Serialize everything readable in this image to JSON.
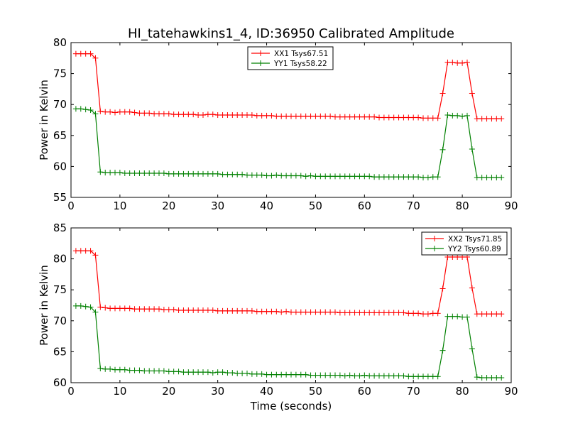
{
  "figure": {
    "title": "HI_tatehawkins1_4, ID:36950 Calibrated Amplitude",
    "xlabel": "Time (seconds)"
  },
  "chart_data": [
    {
      "type": "line",
      "title": "HI_tatehawkins1_4, ID:36950 Calibrated Amplitude",
      "xlabel": "",
      "ylabel": "Power in Kelvin",
      "xlim": [
        0,
        90
      ],
      "ylim": [
        55,
        80
      ],
      "xticks": [
        0,
        10,
        20,
        30,
        40,
        50,
        60,
        70,
        80,
        90
      ],
      "yticks": [
        55,
        60,
        65,
        70,
        75,
        80
      ],
      "grid": false,
      "legend_position": "top-center",
      "marker": "plus",
      "x": [
        1,
        2,
        3,
        4,
        5,
        6,
        7,
        8,
        9,
        10,
        11,
        12,
        13,
        14,
        15,
        16,
        17,
        18,
        19,
        20,
        21,
        22,
        23,
        24,
        25,
        26,
        27,
        28,
        29,
        30,
        31,
        32,
        33,
        34,
        35,
        36,
        37,
        38,
        39,
        40,
        41,
        42,
        43,
        44,
        45,
        46,
        47,
        48,
        49,
        50,
        51,
        52,
        53,
        54,
        55,
        56,
        57,
        58,
        59,
        60,
        61,
        62,
        63,
        64,
        65,
        66,
        67,
        68,
        69,
        70,
        71,
        72,
        73,
        74,
        75,
        76,
        77,
        78,
        79,
        80,
        81,
        82,
        83,
        84,
        85,
        86,
        87,
        88
      ],
      "series": [
        {
          "name": "XX1 Tsys67.51",
          "color": "#ff0000",
          "values": [
            78.2,
            78.2,
            78.2,
            78.2,
            77.5,
            68.9,
            68.8,
            68.8,
            68.7,
            68.8,
            68.8,
            68.8,
            68.7,
            68.6,
            68.6,
            68.6,
            68.5,
            68.5,
            68.5,
            68.5,
            68.4,
            68.4,
            68.4,
            68.4,
            68.4,
            68.3,
            68.3,
            68.4,
            68.4,
            68.3,
            68.3,
            68.3,
            68.3,
            68.3,
            68.3,
            68.3,
            68.3,
            68.2,
            68.2,
            68.2,
            68.2,
            68.1,
            68.1,
            68.1,
            68.1,
            68.1,
            68.1,
            68.1,
            68.1,
            68.1,
            68.1,
            68.1,
            68.1,
            68.0,
            68.0,
            68.0,
            68.0,
            68.0,
            68.0,
            68.0,
            68.0,
            68.0,
            67.9,
            67.9,
            67.9,
            67.9,
            67.9,
            67.9,
            67.9,
            67.9,
            67.9,
            67.8,
            67.8,
            67.8,
            67.8,
            71.8,
            76.8,
            76.8,
            76.7,
            76.7,
            76.8,
            71.8,
            67.7,
            67.7,
            67.7,
            67.7,
            67.7,
            67.7
          ]
        },
        {
          "name": "YY1 Tsys58.22",
          "color": "#008000",
          "values": [
            69.3,
            69.3,
            69.2,
            69.1,
            68.5,
            59.1,
            59.0,
            59.0,
            59.0,
            59.0,
            58.9,
            58.9,
            58.9,
            58.9,
            58.9,
            58.9,
            58.9,
            58.9,
            58.9,
            58.8,
            58.8,
            58.8,
            58.8,
            58.8,
            58.8,
            58.8,
            58.8,
            58.8,
            58.8,
            58.8,
            58.7,
            58.7,
            58.7,
            58.7,
            58.7,
            58.6,
            58.6,
            58.6,
            58.6,
            58.5,
            58.5,
            58.6,
            58.5,
            58.5,
            58.5,
            58.5,
            58.5,
            58.4,
            58.5,
            58.4,
            58.4,
            58.4,
            58.4,
            58.4,
            58.4,
            58.4,
            58.4,
            58.4,
            58.4,
            58.4,
            58.4,
            58.3,
            58.3,
            58.3,
            58.3,
            58.3,
            58.3,
            58.3,
            58.3,
            58.3,
            58.3,
            58.2,
            58.2,
            58.3,
            58.3,
            62.7,
            68.3,
            68.2,
            68.2,
            68.1,
            68.2,
            62.8,
            58.2,
            58.2,
            58.2,
            58.2,
            58.2,
            58.2
          ]
        }
      ]
    },
    {
      "type": "line",
      "title": "",
      "xlabel": "Time (seconds)",
      "ylabel": "Power in Kelvin",
      "xlim": [
        0,
        90
      ],
      "ylim": [
        60,
        85
      ],
      "xticks": [
        0,
        10,
        20,
        30,
        40,
        50,
        60,
        70,
        80,
        90
      ],
      "yticks": [
        60,
        65,
        70,
        75,
        80,
        85
      ],
      "grid": false,
      "legend_position": "top-right",
      "marker": "plus",
      "x": [
        1,
        2,
        3,
        4,
        5,
        6,
        7,
        8,
        9,
        10,
        11,
        12,
        13,
        14,
        15,
        16,
        17,
        18,
        19,
        20,
        21,
        22,
        23,
        24,
        25,
        26,
        27,
        28,
        29,
        30,
        31,
        32,
        33,
        34,
        35,
        36,
        37,
        38,
        39,
        40,
        41,
        42,
        43,
        44,
        45,
        46,
        47,
        48,
        49,
        50,
        51,
        52,
        53,
        54,
        55,
        56,
        57,
        58,
        59,
        60,
        61,
        62,
        63,
        64,
        65,
        66,
        67,
        68,
        69,
        70,
        71,
        72,
        73,
        74,
        75,
        76,
        77,
        78,
        79,
        80,
        81,
        82,
        83,
        84,
        85,
        86,
        87,
        88
      ],
      "series": [
        {
          "name": "XX2 Tsys71.85",
          "color": "#ff0000",
          "values": [
            81.3,
            81.3,
            81.3,
            81.3,
            80.6,
            72.2,
            72.1,
            72.0,
            72.0,
            72.0,
            72.0,
            72.0,
            71.9,
            71.9,
            71.9,
            71.9,
            71.9,
            71.9,
            71.8,
            71.8,
            71.8,
            71.7,
            71.7,
            71.7,
            71.7,
            71.7,
            71.7,
            71.7,
            71.7,
            71.6,
            71.6,
            71.6,
            71.6,
            71.6,
            71.6,
            71.6,
            71.6,
            71.5,
            71.5,
            71.5,
            71.5,
            71.5,
            71.4,
            71.5,
            71.4,
            71.4,
            71.4,
            71.4,
            71.4,
            71.4,
            71.4,
            71.4,
            71.4,
            71.4,
            71.3,
            71.3,
            71.3,
            71.3,
            71.3,
            71.3,
            71.3,
            71.3,
            71.3,
            71.3,
            71.3,
            71.3,
            71.3,
            71.3,
            71.2,
            71.2,
            71.2,
            71.1,
            71.1,
            71.2,
            71.2,
            75.2,
            80.3,
            80.3,
            80.3,
            80.3,
            80.3,
            75.3,
            71.1,
            71.1,
            71.1,
            71.1,
            71.1,
            71.1
          ]
        },
        {
          "name": "YY2 Tsys60.89",
          "color": "#008000",
          "values": [
            72.4,
            72.4,
            72.3,
            72.2,
            71.4,
            62.3,
            62.2,
            62.2,
            62.1,
            62.1,
            62.1,
            62.0,
            62.0,
            62.0,
            61.9,
            61.9,
            61.9,
            61.9,
            61.9,
            61.8,
            61.8,
            61.8,
            61.7,
            61.7,
            61.7,
            61.7,
            61.7,
            61.7,
            61.6,
            61.7,
            61.7,
            61.6,
            61.6,
            61.5,
            61.5,
            61.5,
            61.4,
            61.4,
            61.4,
            61.3,
            61.3,
            61.3,
            61.3,
            61.3,
            61.3,
            61.3,
            61.3,
            61.3,
            61.2,
            61.2,
            61.2,
            61.2,
            61.2,
            61.2,
            61.2,
            61.1,
            61.2,
            61.1,
            61.1,
            61.2,
            61.1,
            61.1,
            61.1,
            61.1,
            61.1,
            61.1,
            61.1,
            61.1,
            61.0,
            61.0,
            61.0,
            61.0,
            61.0,
            61.0,
            61.0,
            65.2,
            70.7,
            70.7,
            70.7,
            70.6,
            70.6,
            65.5,
            60.9,
            60.8,
            60.8,
            60.8,
            60.8,
            60.8
          ]
        }
      ]
    }
  ]
}
